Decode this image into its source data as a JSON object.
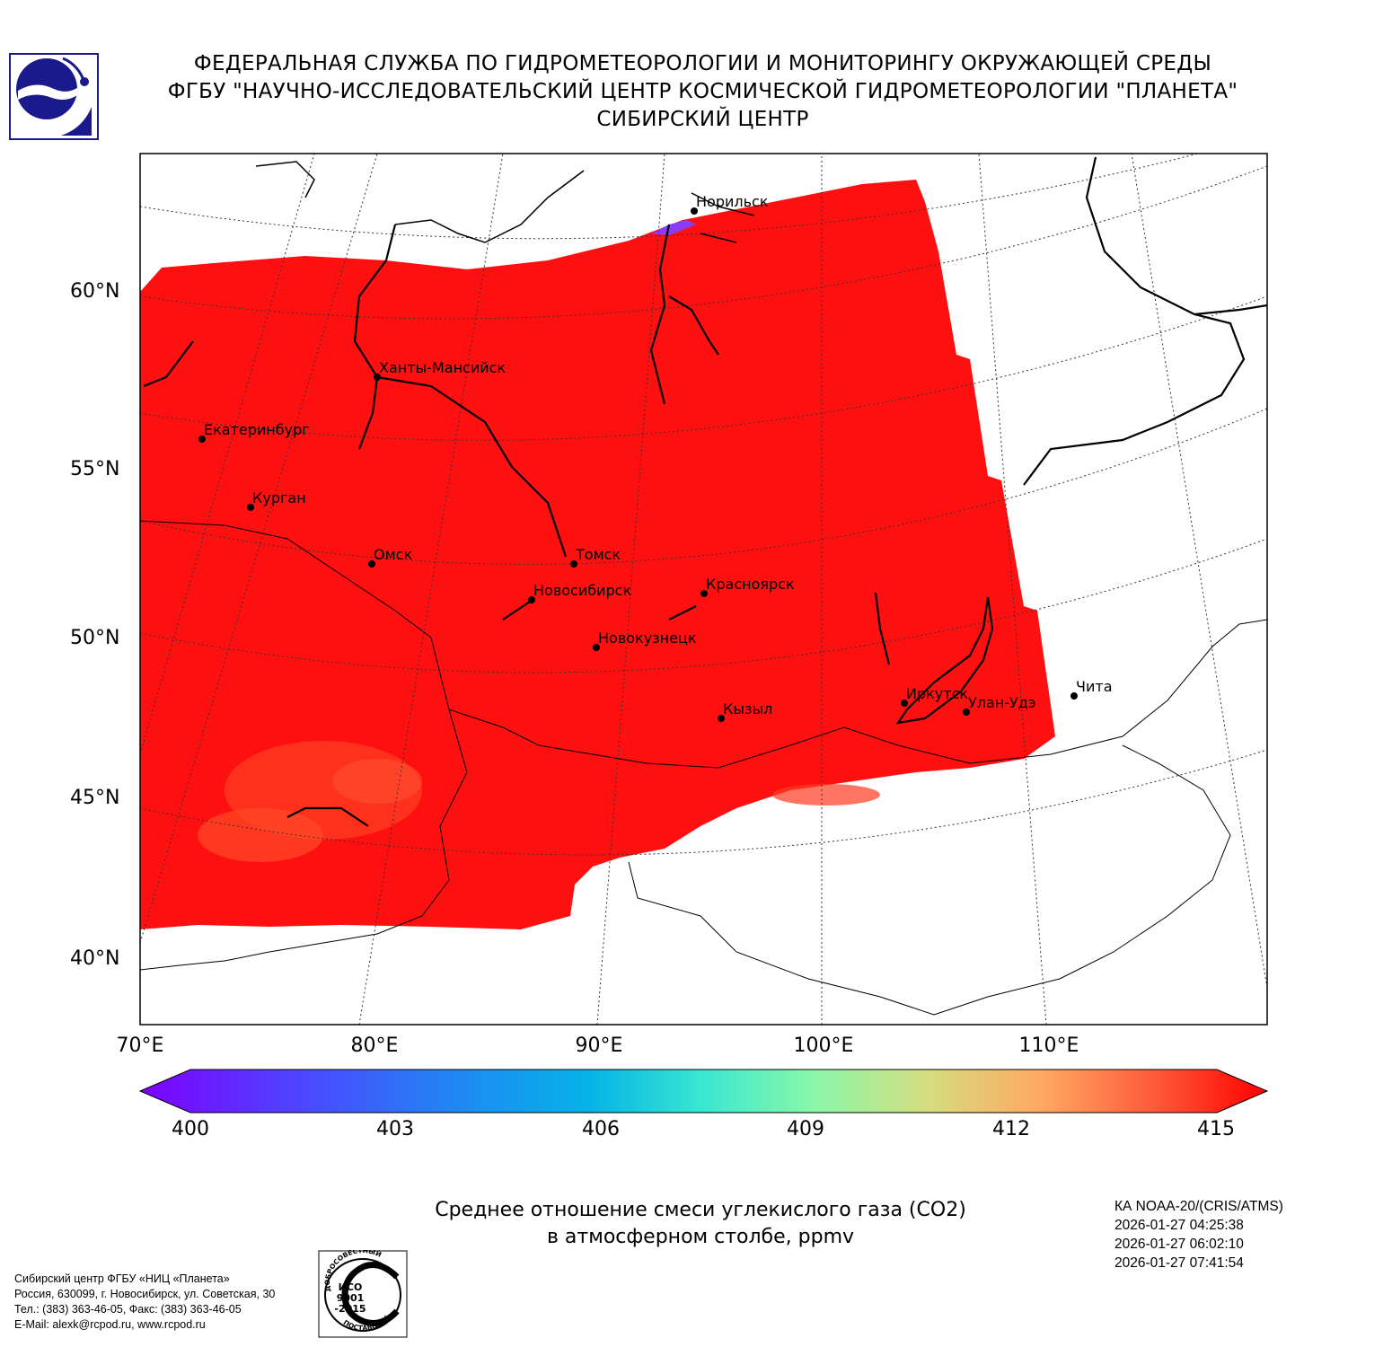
{
  "header": {
    "line1": "ФЕДЕРАЛЬНАЯ СЛУЖБА ПО ГИДРОМЕТЕОРОЛОГИИ И МОНИТОРИНГУ ОКРУЖАЮЩЕЙ СРЕДЫ",
    "line2": "ФГБУ \"НАУЧНО-ИССЛЕДОВАТЕЛЬСКИЙ ЦЕНТР КОСМИЧЕСКОЙ ГИДРОМЕТЕОРОЛОГИИ \"ПЛАНЕТА\"",
    "line3": "СИБИРСКИЙ ЦЕНТР"
  },
  "logo_icon": "planeta-logo-icon",
  "map": {
    "lat_labels": [
      "60°N",
      "55°N",
      "50°N",
      "45°N",
      "40°N"
    ],
    "lon_labels": [
      "70°E",
      "80°E",
      "90°E",
      "100°E",
      "110°E"
    ],
    "cities": [
      {
        "name": "Норильск"
      },
      {
        "name": "Ханты-Мансийск"
      },
      {
        "name": "Екатеринбург"
      },
      {
        "name": "Курган"
      },
      {
        "name": "Омск"
      },
      {
        "name": "Томск"
      },
      {
        "name": "Новосибирск"
      },
      {
        "name": "Красноярск"
      },
      {
        "name": "Новокузнецк"
      },
      {
        "name": "Кызыл"
      },
      {
        "name": "Иркутск"
      },
      {
        "name": "Улан-Удэ"
      },
      {
        "name": "Чита"
      }
    ],
    "field_color": "#ff1010"
  },
  "colorbar": {
    "ticks": [
      "400",
      "403",
      "406",
      "409",
      "412",
      "415"
    ],
    "min": 400,
    "max": 415
  },
  "caption": {
    "line1": "Среднее отношение смеси углекислого газа (CO2)",
    "line2": "в атмосферном столбе, ppmv"
  },
  "satellite": {
    "name": "КА NOAA-20/(CRIS/ATMS)",
    "times": [
      "2026-01-27 04:25:38",
      "2026-01-27 06:02:10",
      "2026-01-27 07:41:54"
    ]
  },
  "contacts": {
    "line1": "Сибирский центр ФГБУ «НИЦ «Планета»",
    "line2": "Россия, 630099, г. Новосибирск, ул. Советская, 30",
    "line3": "Тел.: (383) 363-46-05, Факс: (383) 363-46-05",
    "line4": "E-Mail: alexk@rcpod.ru, www.rcpod.ru"
  },
  "iso_badge": {
    "top_text": "ДОБРОСОВЕСТНЫЙ",
    "line1": "ИСО",
    "line2": "9001",
    "line3": "-2015",
    "bottom_text": "ПОСТАВЩИК"
  }
}
